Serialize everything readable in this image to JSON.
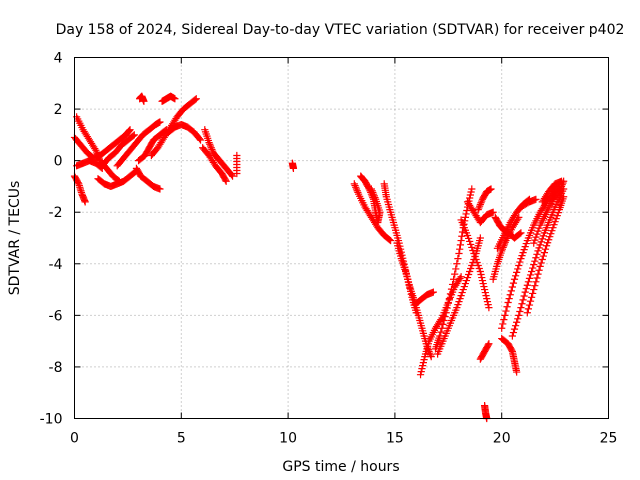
{
  "chart_data": {
    "type": "scatter",
    "title": "Day 158 of 2024, Sidereal Day-to-day VTEC variation (SDTVAR) for receiver p402",
    "xlabel": "GPS time / hours",
    "ylabel": "SDTVAR / TECUs",
    "xlim": [
      0,
      25
    ],
    "ylim": [
      -10,
      4
    ],
    "xticks": [
      0,
      5,
      10,
      15,
      20,
      25
    ],
    "xtick_labels": [
      "0",
      "5",
      "10",
      "15",
      "20",
      "25"
    ],
    "yticks": [
      -10,
      -8,
      -6,
      -4,
      -2,
      0,
      2,
      4
    ],
    "ytick_labels": [
      "-10",
      "-8",
      "-6",
      "-4",
      "-2",
      "0",
      "2",
      "4"
    ],
    "grid": true,
    "marker": "+",
    "series_color": "#ff0000",
    "segments": [
      [
        [
          0.1,
          1.7
        ],
        [
          0.4,
          1.2
        ],
        [
          0.7,
          0.8
        ],
        [
          1.0,
          0.4
        ],
        [
          1.2,
          0.0
        ],
        [
          1.5,
          -0.3
        ],
        [
          1.8,
          -0.6
        ],
        [
          2.1,
          -0.8
        ]
      ],
      [
        [
          0.0,
          0.9
        ],
        [
          0.3,
          0.6
        ],
        [
          0.6,
          0.3
        ],
        [
          0.9,
          0.1
        ],
        [
          1.2,
          0.2
        ],
        [
          1.5,
          0.4
        ],
        [
          1.8,
          0.6
        ],
        [
          2.1,
          0.8
        ],
        [
          2.4,
          1.0
        ],
        [
          2.6,
          1.2
        ]
      ],
      [
        [
          0.0,
          -0.6
        ],
        [
          0.2,
          -0.9
        ],
        [
          0.35,
          -1.3
        ],
        [
          0.5,
          -1.6
        ]
      ],
      [
        [
          0.1,
          -0.2
        ],
        [
          0.4,
          -0.1
        ],
        [
          0.7,
          0.0
        ],
        [
          1.0,
          -0.1
        ],
        [
          1.3,
          -0.3
        ]
      ],
      [
        [
          1.1,
          -0.7
        ],
        [
          1.4,
          -0.9
        ],
        [
          1.7,
          -1.0
        ],
        [
          2.0,
          -0.9
        ],
        [
          2.3,
          -0.8
        ],
        [
          2.6,
          -0.6
        ],
        [
          2.9,
          -0.4
        ]
      ],
      [
        [
          1.3,
          -0.2
        ],
        [
          1.6,
          0.1
        ],
        [
          1.9,
          0.3
        ],
        [
          2.2,
          0.6
        ],
        [
          2.5,
          0.8
        ],
        [
          2.8,
          1.0
        ]
      ],
      [
        [
          2.0,
          -0.2
        ],
        [
          2.3,
          0.1
        ],
        [
          2.6,
          0.4
        ],
        [
          2.9,
          0.7
        ],
        [
          3.2,
          1.0
        ],
        [
          3.5,
          1.2
        ],
        [
          3.8,
          1.4
        ],
        [
          4.0,
          1.5
        ]
      ],
      [
        [
          2.9,
          -0.3
        ],
        [
          3.1,
          -0.6
        ],
        [
          3.4,
          -0.8
        ],
        [
          3.7,
          -1.0
        ],
        [
          4.0,
          -1.1
        ]
      ],
      [
        [
          3.0,
          0.0
        ],
        [
          3.3,
          0.2
        ],
        [
          3.5,
          0.5
        ],
        [
          3.7,
          0.8
        ],
        [
          4.0,
          1.0
        ],
        [
          4.3,
          1.2
        ]
      ],
      [
        [
          3.05,
          2.4
        ],
        [
          3.15,
          2.5
        ],
        [
          3.25,
          2.3
        ]
      ],
      [
        [
          4.1,
          2.3
        ],
        [
          4.3,
          2.4
        ],
        [
          4.5,
          2.5
        ],
        [
          4.7,
          2.4
        ]
      ],
      [
        [
          3.6,
          0.2
        ],
        [
          3.9,
          0.5
        ],
        [
          4.2,
          0.9
        ],
        [
          4.5,
          1.3
        ],
        [
          4.8,
          1.7
        ],
        [
          5.1,
          2.0
        ],
        [
          5.4,
          2.2
        ],
        [
          5.7,
          2.4
        ]
      ],
      [
        [
          4.4,
          1.1
        ],
        [
          4.7,
          1.3
        ],
        [
          5.0,
          1.4
        ],
        [
          5.3,
          1.3
        ],
        [
          5.6,
          1.1
        ],
        [
          5.9,
          0.8
        ]
      ],
      [
        [
          6.1,
          1.2
        ],
        [
          6.3,
          0.7
        ],
        [
          6.5,
          0.3
        ],
        [
          6.8,
          0.0
        ],
        [
          7.1,
          -0.3
        ],
        [
          7.4,
          -0.6
        ]
      ],
      [
        [
          6.0,
          0.5
        ],
        [
          6.3,
          0.2
        ],
        [
          6.6,
          -0.2
        ],
        [
          6.9,
          -0.5
        ],
        [
          7.1,
          -0.8
        ]
      ],
      [
        [
          7.6,
          0.2
        ],
        [
          7.6,
          -0.5
        ]
      ],
      [
        [
          10.2,
          -0.1
        ],
        [
          10.25,
          -0.3
        ]
      ],
      [
        [
          13.1,
          -0.9
        ],
        [
          13.3,
          -1.3
        ],
        [
          13.6,
          -1.8
        ],
        [
          13.9,
          -2.2
        ],
        [
          14.2,
          -2.6
        ],
        [
          14.5,
          -2.9
        ],
        [
          14.8,
          -3.1
        ]
      ],
      [
        [
          13.4,
          -0.6
        ],
        [
          13.6,
          -0.8
        ],
        [
          13.8,
          -1.1
        ],
        [
          14.0,
          -1.5
        ],
        [
          14.1,
          -2.0
        ],
        [
          14.2,
          -2.4
        ],
        [
          14.3,
          -2.0
        ],
        [
          14.1,
          -1.5
        ],
        [
          13.9,
          -1.1
        ]
      ],
      [
        [
          14.5,
          -0.9
        ],
        [
          14.6,
          -1.4
        ],
        [
          14.8,
          -2.0
        ],
        [
          15.0,
          -2.6
        ],
        [
          15.2,
          -3.2
        ],
        [
          15.4,
          -3.9
        ],
        [
          15.6,
          -4.6
        ],
        [
          15.8,
          -5.3
        ],
        [
          16.0,
          -5.9
        ]
      ],
      [
        [
          15.1,
          -3.2
        ],
        [
          15.3,
          -3.8
        ],
        [
          15.5,
          -4.3
        ],
        [
          15.7,
          -4.9
        ],
        [
          15.9,
          -5.4
        ],
        [
          16.1,
          -6.0
        ],
        [
          16.3,
          -6.6
        ],
        [
          16.5,
          -7.2
        ],
        [
          16.7,
          -7.6
        ]
      ],
      [
        [
          15.9,
          -5.6
        ],
        [
          16.2,
          -5.4
        ],
        [
          16.5,
          -5.2
        ],
        [
          16.8,
          -5.1
        ]
      ],
      [
        [
          16.2,
          -8.3
        ],
        [
          16.4,
          -7.6
        ],
        [
          16.6,
          -7.0
        ],
        [
          16.9,
          -6.5
        ],
        [
          17.2,
          -6.1
        ],
        [
          17.5,
          -5.5
        ],
        [
          17.8,
          -4.9
        ],
        [
          18.1,
          -4.5
        ]
      ],
      [
        [
          17.0,
          -7.5
        ],
        [
          17.3,
          -6.9
        ],
        [
          17.6,
          -6.3
        ],
        [
          17.9,
          -5.7
        ],
        [
          18.2,
          -5.0
        ],
        [
          18.5,
          -4.3
        ],
        [
          18.8,
          -3.6
        ],
        [
          19.0,
          -3.0
        ]
      ],
      [
        [
          16.9,
          -7.3
        ],
        [
          17.1,
          -6.8
        ],
        [
          17.4,
          -5.9
        ],
        [
          17.7,
          -4.8
        ],
        [
          18.0,
          -3.6
        ],
        [
          18.2,
          -2.6
        ],
        [
          18.4,
          -1.8
        ],
        [
          18.6,
          -1.1
        ]
      ],
      [
        [
          18.1,
          -2.3
        ],
        [
          18.4,
          -2.9
        ],
        [
          18.7,
          -3.6
        ],
        [
          19.0,
          -4.3
        ],
        [
          19.2,
          -5.0
        ],
        [
          19.4,
          -5.7
        ]
      ],
      [
        [
          18.4,
          -1.6
        ],
        [
          18.7,
          -2.0
        ],
        [
          19.0,
          -2.4
        ],
        [
          19.3,
          -2.1
        ],
        [
          19.6,
          -2.0
        ]
      ],
      [
        [
          18.9,
          -1.9
        ],
        [
          19.1,
          -1.5
        ],
        [
          19.3,
          -1.2
        ],
        [
          19.5,
          -1.1
        ]
      ],
      [
        [
          19.0,
          -7.7
        ],
        [
          19.2,
          -7.4
        ],
        [
          19.4,
          -7.1
        ]
      ],
      [
        [
          19.2,
          -9.5
        ],
        [
          19.25,
          -9.8
        ],
        [
          19.3,
          -10.0
        ]
      ],
      [
        [
          19.7,
          -2.2
        ],
        [
          19.9,
          -2.5
        ],
        [
          20.1,
          -2.7
        ],
        [
          20.3,
          -2.8
        ],
        [
          20.6,
          -3.0
        ],
        [
          20.9,
          -2.8
        ]
      ],
      [
        [
          19.6,
          -4.6
        ],
        [
          19.8,
          -4.0
        ],
        [
          20.0,
          -3.5
        ],
        [
          20.2,
          -3.1
        ],
        [
          20.5,
          -2.6
        ],
        [
          20.8,
          -2.2
        ]
      ],
      [
        [
          19.8,
          -3.4
        ],
        [
          20.1,
          -2.9
        ],
        [
          20.4,
          -2.4
        ],
        [
          20.7,
          -2.0
        ],
        [
          21.0,
          -1.7
        ],
        [
          21.3,
          -1.5
        ]
      ],
      [
        [
          20.0,
          -6.9
        ],
        [
          20.3,
          -7.1
        ],
        [
          20.5,
          -7.4
        ],
        [
          20.6,
          -7.8
        ],
        [
          20.7,
          -8.2
        ]
      ],
      [
        [
          20.0,
          -6.5
        ],
        [
          20.3,
          -5.5
        ],
        [
          20.6,
          -4.6
        ],
        [
          20.9,
          -3.8
        ],
        [
          21.2,
          -3.1
        ],
        [
          21.5,
          -2.5
        ],
        [
          21.8,
          -2.0
        ],
        [
          22.1,
          -1.6
        ],
        [
          22.4,
          -1.3
        ],
        [
          22.7,
          -1.0
        ]
      ],
      [
        [
          20.5,
          -6.8
        ],
        [
          20.8,
          -6.0
        ],
        [
          21.1,
          -5.1
        ],
        [
          21.4,
          -4.3
        ],
        [
          21.7,
          -3.5
        ],
        [
          22.0,
          -2.8
        ],
        [
          22.3,
          -2.2
        ],
        [
          22.6,
          -1.6
        ],
        [
          22.9,
          -1.1
        ]
      ],
      [
        [
          21.2,
          -5.9
        ],
        [
          21.5,
          -5.0
        ],
        [
          21.8,
          -4.1
        ],
        [
          22.1,
          -3.3
        ],
        [
          22.4,
          -2.6
        ],
        [
          22.7,
          -1.9
        ],
        [
          22.9,
          -1.4
        ]
      ],
      [
        [
          21.5,
          -3.2
        ],
        [
          21.8,
          -2.5
        ],
        [
          22.1,
          -2.0
        ],
        [
          22.4,
          -1.5
        ],
        [
          22.7,
          -1.2
        ],
        [
          22.9,
          -0.8
        ]
      ],
      [
        [
          21.9,
          -1.6
        ],
        [
          22.2,
          -1.2
        ],
        [
          22.5,
          -0.9
        ],
        [
          22.8,
          -0.8
        ]
      ],
      [
        [
          20.9,
          -1.8
        ],
        [
          21.3,
          -1.6
        ],
        [
          21.6,
          -1.5
        ]
      ]
    ]
  }
}
